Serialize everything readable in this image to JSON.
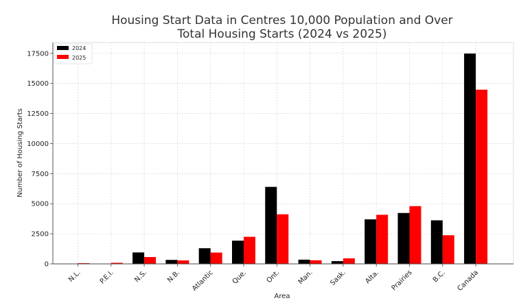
{
  "chart_data": {
    "type": "bar",
    "title_line1": "Housing Start Data in Centres 10,000 Population and Over",
    "title_line2": "Total Housing Starts (2024 vs 2025)",
    "xlabel": "Area",
    "ylabel": "Number of Housing Starts",
    "categories": [
      "N.L.",
      "P.E.I.",
      "N.S.",
      "N.B.",
      "Atlantic",
      "Que.",
      "Ont.",
      "Man.",
      "Sask.",
      "Alta.",
      "Prairies",
      "B.C.",
      "Canada"
    ],
    "series": [
      {
        "name": "2024",
        "color": "#000000",
        "values": [
          15,
          20,
          950,
          330,
          1300,
          1930,
          6400,
          350,
          230,
          3700,
          4230,
          3620,
          17480
        ]
      },
      {
        "name": "2025",
        "color": "#ff0000",
        "values": [
          60,
          90,
          570,
          290,
          940,
          2250,
          4120,
          300,
          460,
          4080,
          4800,
          2380,
          14480
        ]
      }
    ],
    "yticks": [
      "0",
      "2500",
      "5000",
      "7500",
      "10000",
      "12500",
      "15000",
      "17500"
    ],
    "ylim": [
      0,
      18400
    ],
    "grid": true,
    "legend_position": "top-left"
  }
}
